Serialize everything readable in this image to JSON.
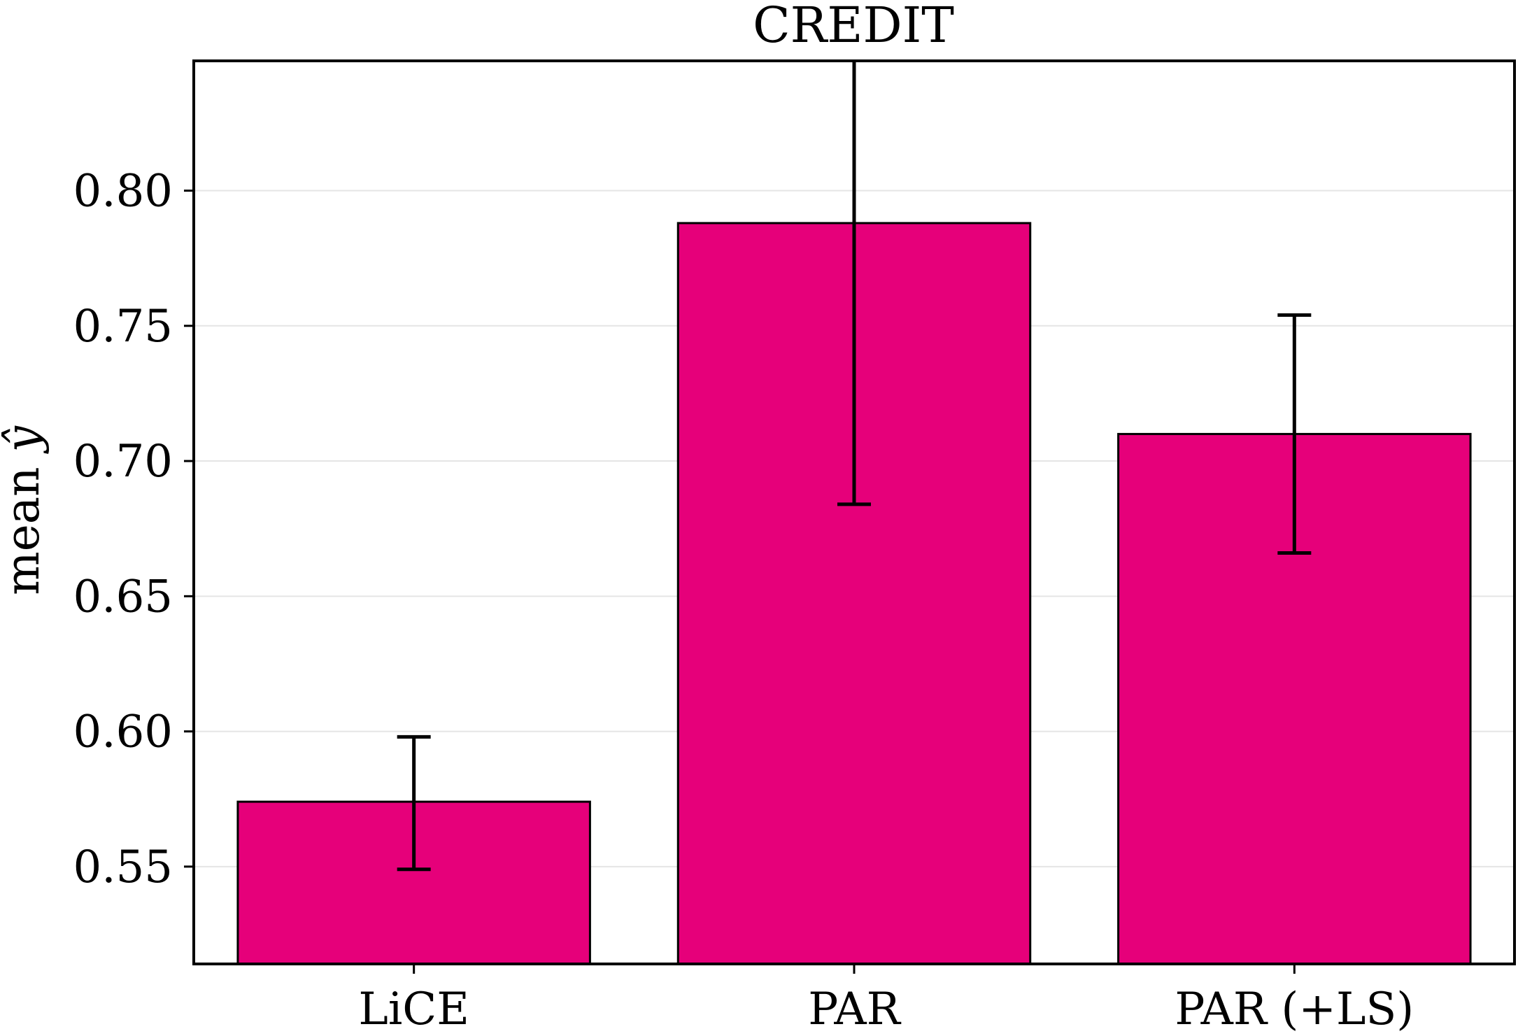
{
  "chart_data": {
    "type": "bar",
    "title": "CREDIT",
    "xlabel": "",
    "ylabel": "mean ŷ",
    "ylabel_prefix": "mean",
    "ylabel_symbol": "ŷ",
    "categories": [
      "LiCE",
      "PAR",
      "PAR (+LS)"
    ],
    "values": [
      0.574,
      0.788,
      0.71
    ],
    "error_low": [
      0.549,
      0.684,
      0.666
    ],
    "error_high": [
      0.598,
      0.848,
      0.754
    ],
    "ylim": [
      0.514,
      0.848
    ],
    "yticks": [
      0.55,
      0.6,
      0.65,
      0.7,
      0.75,
      0.8
    ],
    "ytick_labels": [
      "0.55",
      "0.60",
      "0.65",
      "0.70",
      "0.75",
      "0.80"
    ],
    "grid": "horizontal",
    "legend": "none",
    "bar_color": "#e6007a",
    "edge_color": "#000000",
    "grid_color": "#e5e5e5"
  }
}
